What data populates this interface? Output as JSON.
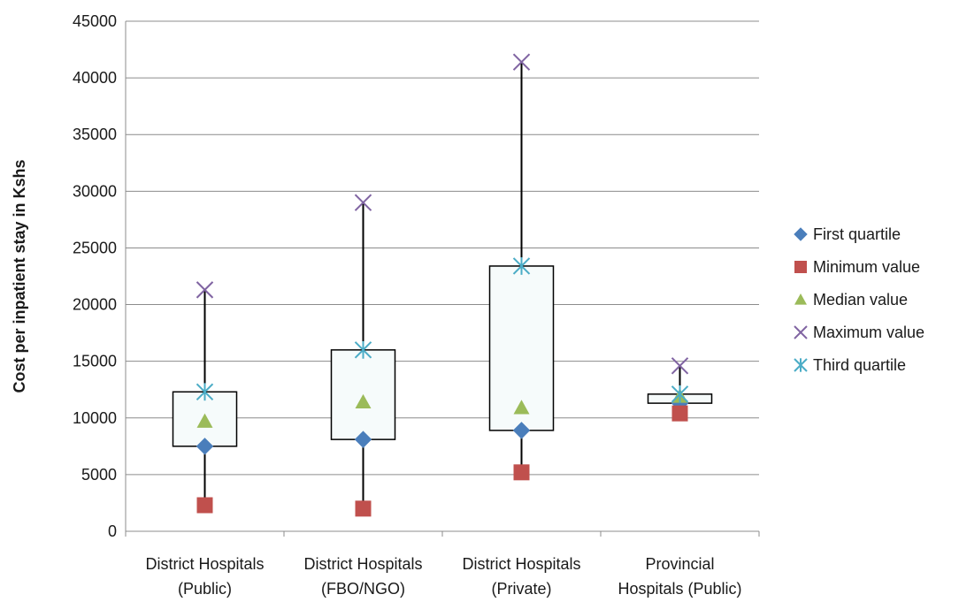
{
  "chart_data": {
    "type": "box",
    "ylabel": "Cost per inpatient stay in Kshs",
    "xlabel": "",
    "ylim": [
      0,
      45000
    ],
    "yticks": [
      0,
      5000,
      10000,
      15000,
      20000,
      25000,
      30000,
      35000,
      40000,
      45000
    ],
    "grid": true,
    "legend_position": "right",
    "categories": [
      [
        "District Hospitals",
        "(Public)"
      ],
      [
        "District Hospitals",
        "(FBO/NGO)"
      ],
      [
        "District Hospitals",
        "(Private)"
      ],
      [
        "Provincial",
        "Hospitals (Public)"
      ]
    ],
    "series": [
      {
        "name": "First quartile",
        "marker": "diamond",
        "color": "#4a7ebb",
        "values": [
          7500,
          8100,
          8900,
          11300
        ]
      },
      {
        "name": "Minimum value",
        "marker": "square",
        "color": "#c0504d",
        "values": [
          2300,
          2000,
          5200,
          10400
        ]
      },
      {
        "name": "Median value",
        "marker": "triangle",
        "color": "#9bbb59",
        "values": [
          9700,
          11400,
          10900,
          11900
        ]
      },
      {
        "name": "Maximum value",
        "marker": "x",
        "color": "#8064a2",
        "values": [
          21300,
          29000,
          41400,
          14600
        ]
      },
      {
        "name": "Third quartile",
        "marker": "star",
        "color": "#4bacc6",
        "values": [
          12300,
          16000,
          23400,
          12100
        ]
      }
    ]
  }
}
